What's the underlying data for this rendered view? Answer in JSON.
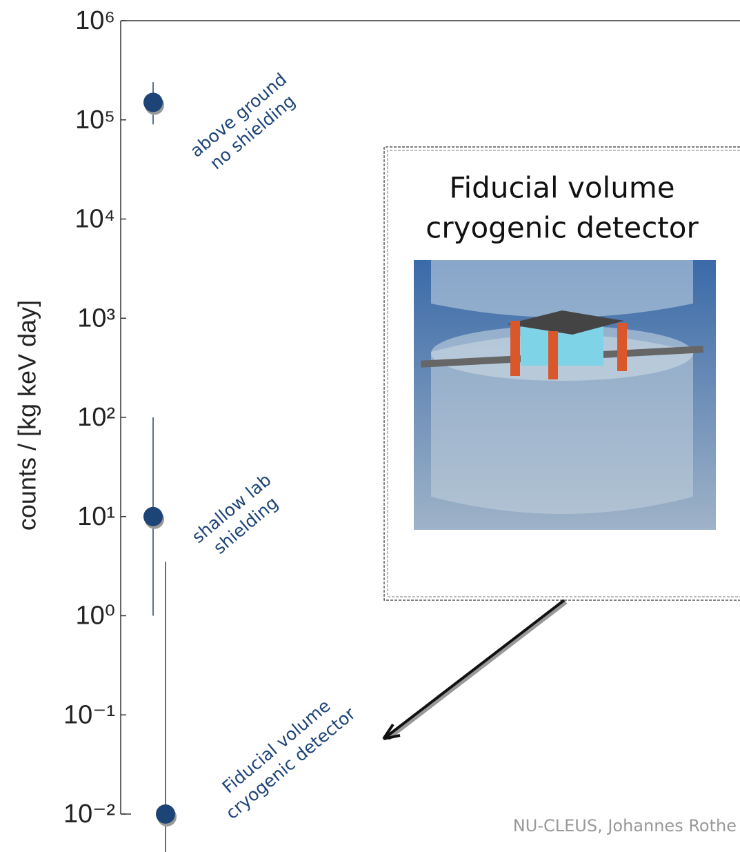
{
  "chart_data": {
    "type": "scatter",
    "ylabel": "counts / [kg keV day]",
    "log_y": true,
    "ylim": [
      0.01,
      1000000
    ],
    "yticks": [
      {
        "value": 0.01,
        "label": "10⁻²"
      },
      {
        "value": 0.1,
        "label": "10⁻¹"
      },
      {
        "value": 1,
        "label": "10⁰"
      },
      {
        "value": 10,
        "label": "10¹"
      },
      {
        "value": 100,
        "label": "10²"
      },
      {
        "value": 1000,
        "label": "10³"
      },
      {
        "value": 10000,
        "label": "10⁴"
      },
      {
        "value": 100000,
        "label": "10⁵"
      },
      {
        "value": 1000000,
        "label": "10⁶"
      }
    ],
    "categories": [
      null,
      null,
      null
    ],
    "series": [
      {
        "color": "#1d4477",
        "values": [
          150000,
          10,
          0.01
        ],
        "error_low": [
          90000,
          1,
          0.004
        ],
        "error_high": [
          240000,
          100,
          3.5
        ]
      }
    ],
    "annotations": [
      [
        "above ground",
        "no shielding"
      ],
      [
        "shallow lab",
        "shielding"
      ],
      [
        "Fiducial volume",
        "cryogenic detector"
      ]
    ],
    "inset_title": [
      "Fiducial volume",
      "cryogenic detector"
    ],
    "credit": "NU-CLEUS, Johannes Rothe"
  }
}
